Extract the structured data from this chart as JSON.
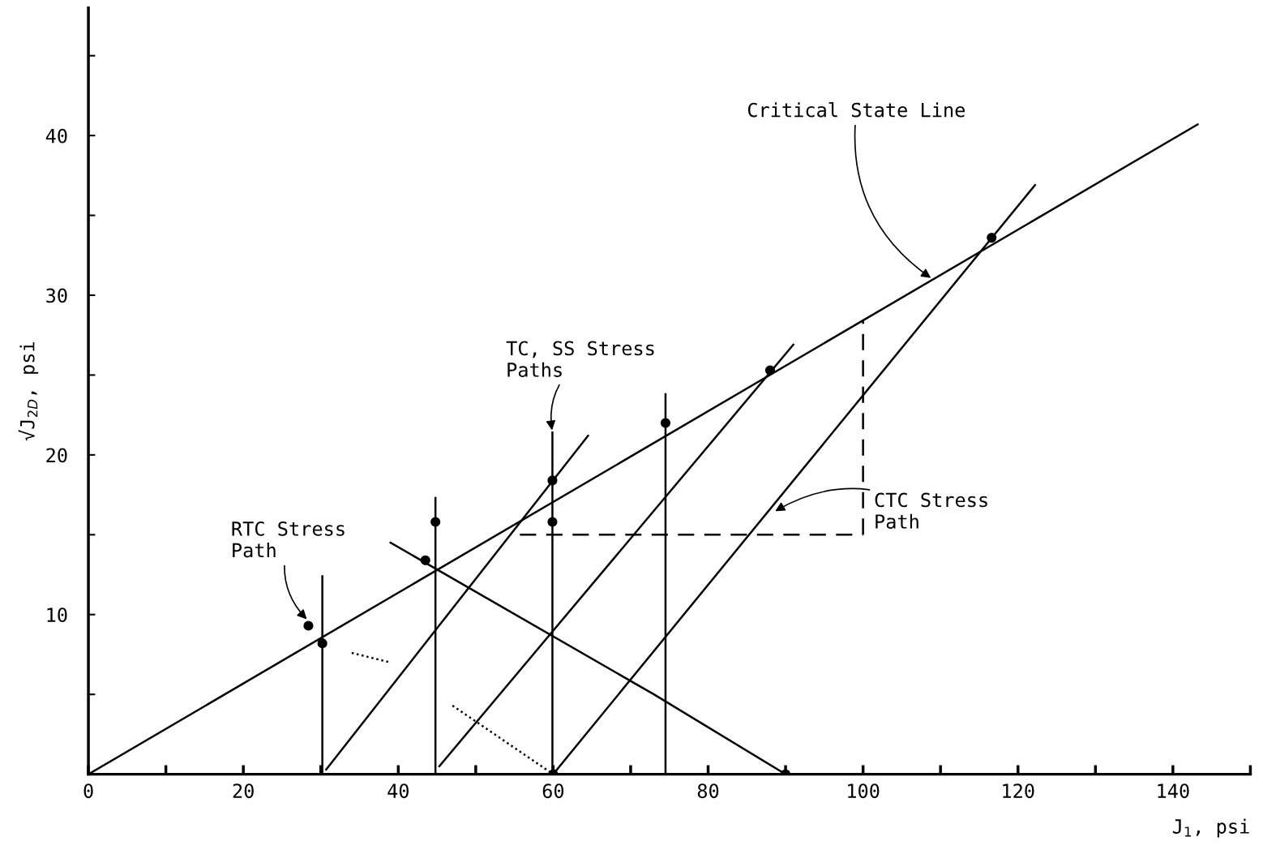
{
  "chart_data": {
    "type": "line",
    "xlabel": "J$_{1}$, psi",
    "ylabel": "√J$_{2D}$, psi",
    "xlim": [
      0,
      150
    ],
    "ylim": [
      0,
      48
    ],
    "xticks": [
      0,
      {
        "value": 10,
        "label": null
      },
      20,
      {
        "value": 30,
        "label": null
      },
      40,
      {
        "value": 50,
        "label": null
      },
      60,
      {
        "value": 70,
        "label": null
      },
      80,
      {
        "value": 90,
        "label": null
      },
      100,
      {
        "value": 110,
        "label": null
      },
      120,
      {
        "value": 130,
        "label": null
      },
      140,
      {
        "value": 150,
        "label": null
      }
    ],
    "yticks": [
      {
        "value": 5,
        "label": null
      },
      10,
      {
        "value": 15,
        "label": null
      },
      20,
      {
        "value": 25,
        "label": null
      },
      30,
      {
        "value": 35,
        "label": null
      },
      40,
      {
        "value": 45,
        "label": null
      }
    ],
    "grid": false,
    "legend": false,
    "marker": "none",
    "line_style": "solid",
    "series": [
      {
        "color": "#000000",
        "x": [
          0,
          143.2
        ],
        "values": [
          0,
          40.7
        ]
      },
      {
        "color": "#000000",
        "x": [
          30.2,
          30.2
        ],
        "values": [
          0,
          12.4
        ]
      },
      {
        "color": "#000000",
        "x": [
          44.8,
          44.8
        ],
        "values": [
          0,
          17.3
        ]
      },
      {
        "color": "#000000",
        "x": [
          59.9,
          59.9
        ],
        "values": [
          0,
          21.4
        ]
      },
      {
        "color": "#000000",
        "x": [
          74.5,
          74.5
        ],
        "values": [
          0,
          23.8
        ]
      },
      {
        "color": "#000000",
        "x": [
          30.7,
          64.5
        ],
        "values": [
          0.3,
          21.2
        ]
      },
      {
        "color": "#000000",
        "x": [
          45.3,
          91.0
        ],
        "values": [
          0.5,
          26.9
        ]
      },
      {
        "color": "#000000",
        "x": [
          60.0,
          122.2
        ],
        "values": [
          0,
          36.9
        ]
      },
      {
        "color": "#000000",
        "x": [
          39.0,
          73.0,
          90.0
        ],
        "values": [
          14.5,
          5.0,
          0
        ]
      },
      {
        "color": "#000000",
        "line_style": "dotted",
        "x": [
          34.0,
          39.0
        ],
        "values": [
          7.6,
          7.0
        ]
      },
      {
        "color": "#000000",
        "line_style": "dotted",
        "x": [
          47.0,
          60.0
        ],
        "values": [
          4.3,
          0
        ]
      },
      {
        "color": "#000000",
        "line_style": "dashed",
        "x": [
          55.7,
          100.0
        ],
        "values": [
          15.0,
          15.0
        ]
      },
      {
        "color": "#000000",
        "line_style": "dashed",
        "x": [
          100.0,
          100.0
        ],
        "values": [
          15.0,
          28.4
        ]
      },
      {
        "type": "scatter",
        "color": "#000000",
        "marker": "circle",
        "x": [
          30.2,
          28.4,
          43.5,
          44.8,
          59.9,
          59.9,
          74.5,
          116.6,
          88.0,
          60.0,
          90.0
        ],
        "values": [
          8.2,
          9.3,
          13.4,
          15.8,
          18.4,
          15.8,
          22.0,
          33.6,
          25.3,
          0,
          0
        ]
      }
    ],
    "annotations": [
      {
        "text": "Critical State Line",
        "x": 109.0,
        "y": 31.0
      },
      {
        "text": "TC, SS Stress\nPaths",
        "x": 59.9,
        "y": 21.4
      },
      {
        "text": "RTC Stress\nPath",
        "x": 28.4,
        "y": 9.6
      },
      {
        "text": "CTC Stress\nPath",
        "x": 88.4,
        "y": 16.4
      }
    ]
  }
}
